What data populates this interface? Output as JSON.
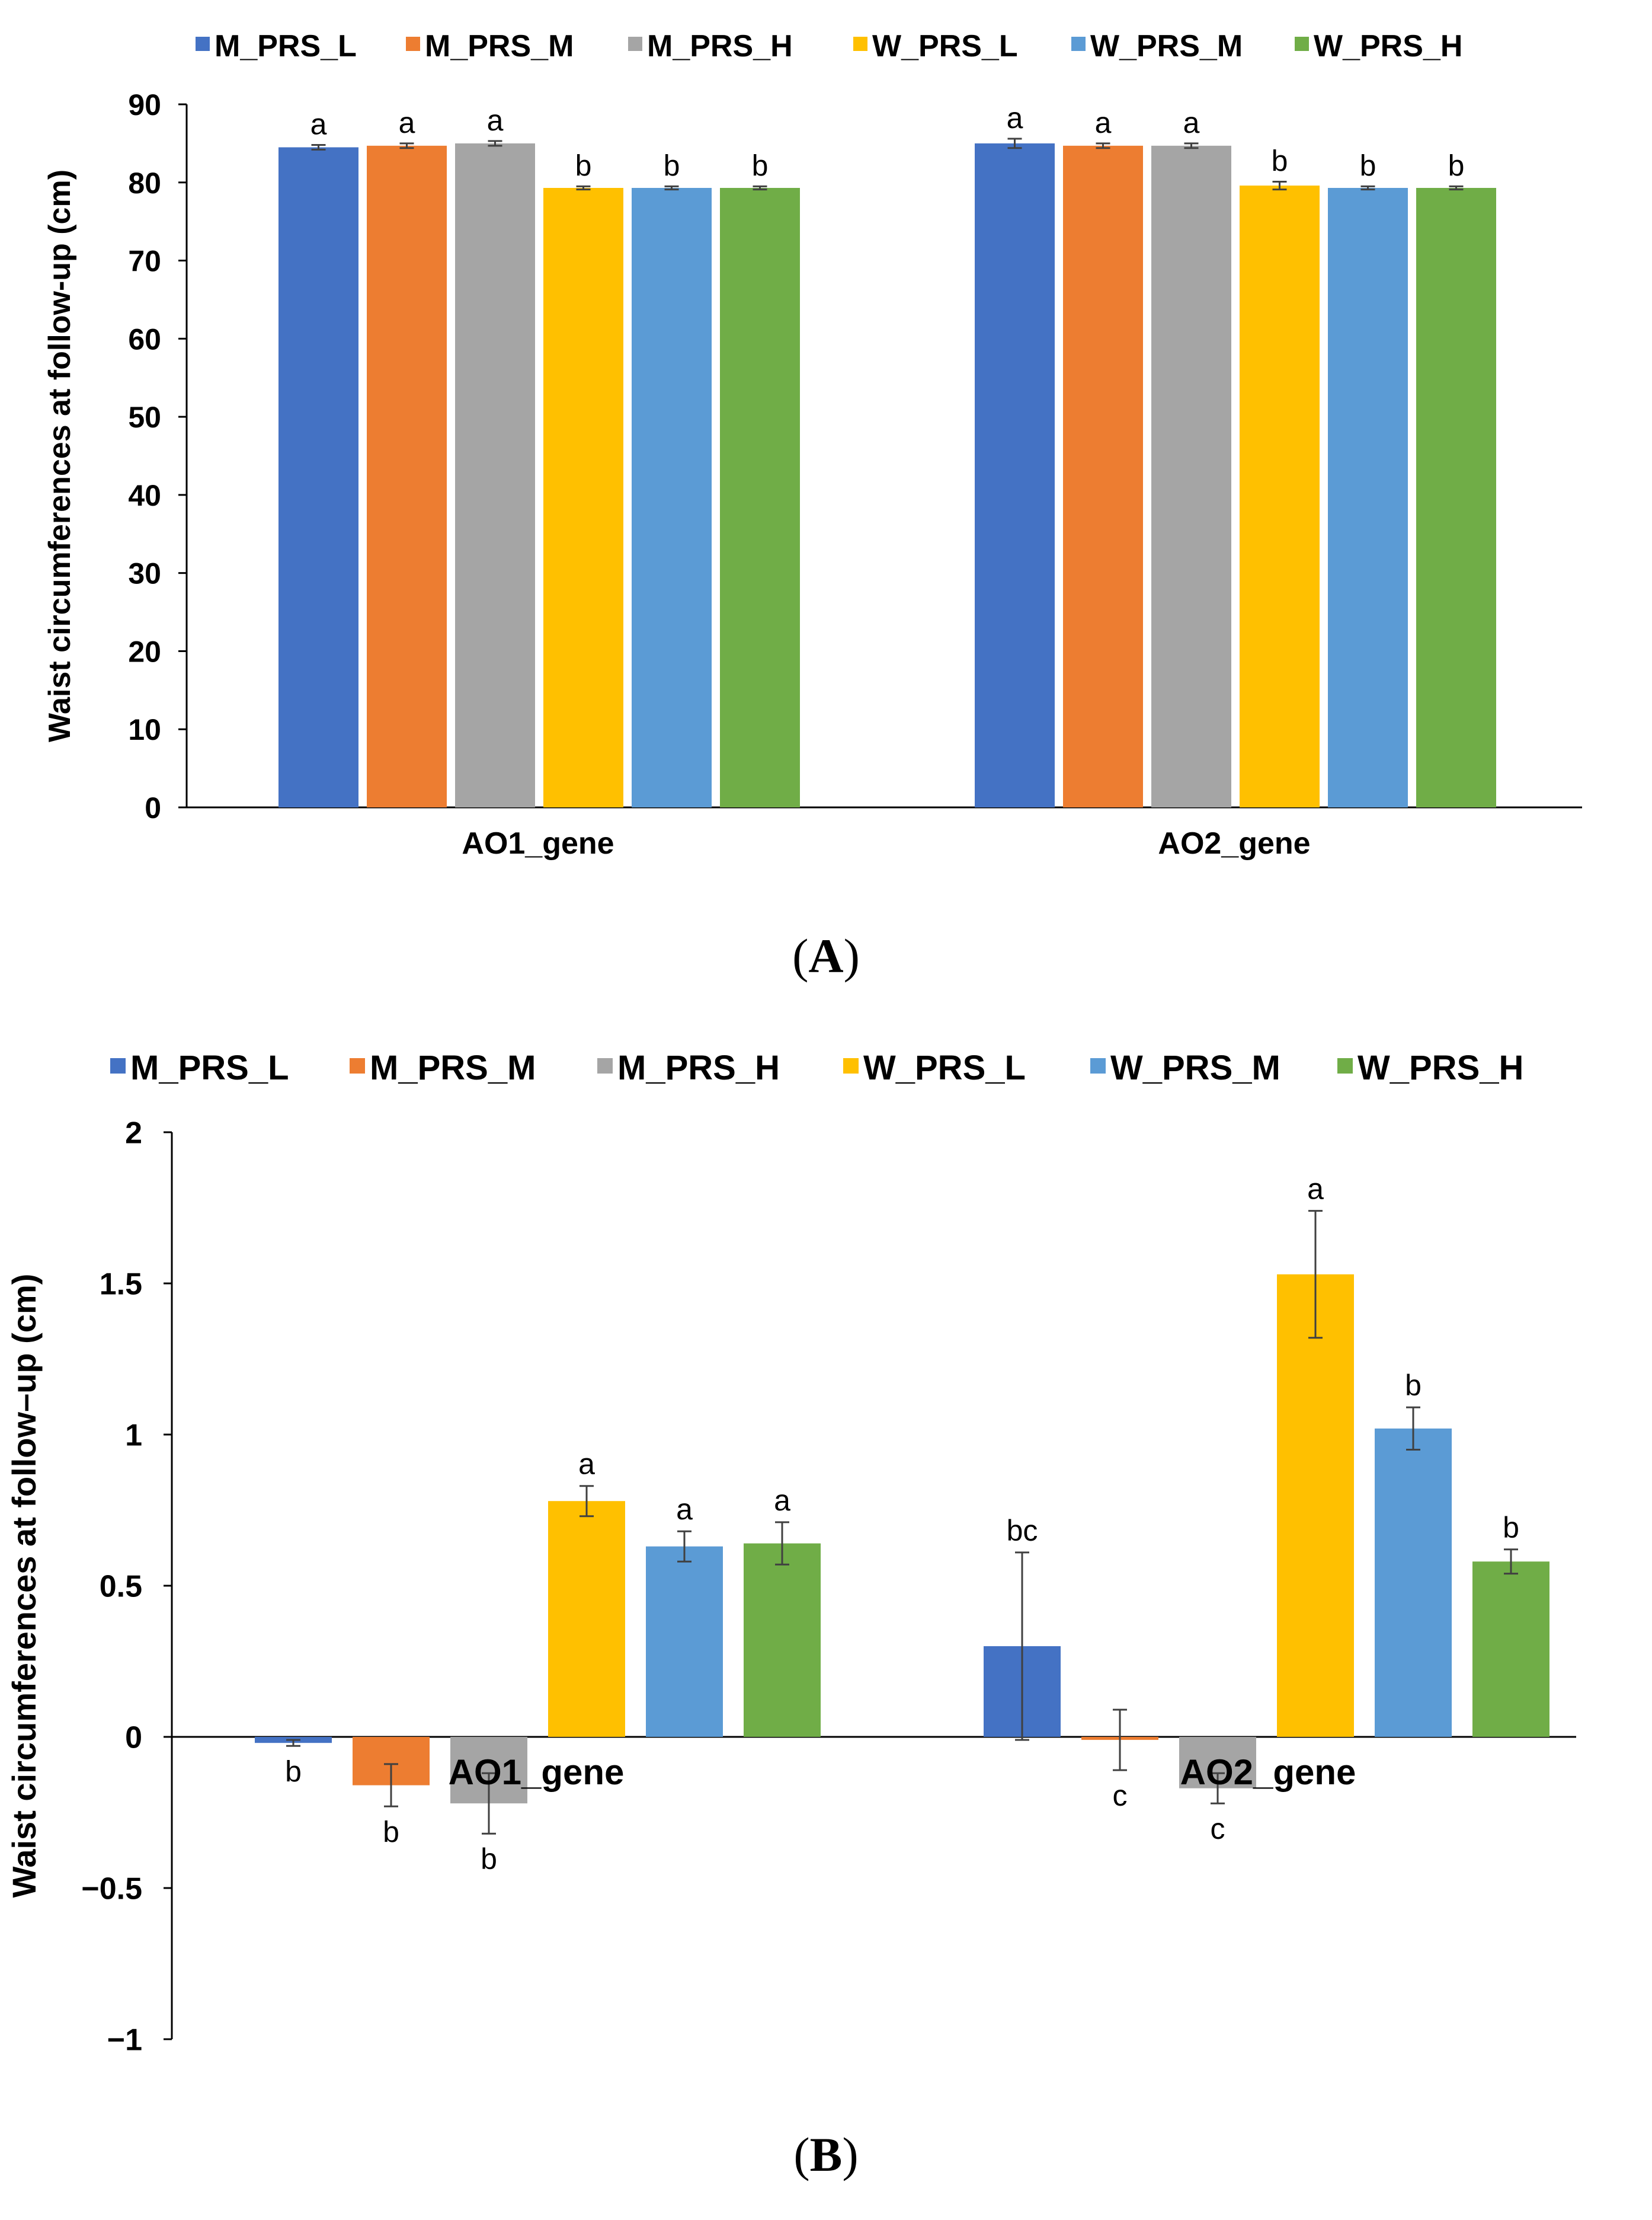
{
  "colors": {
    "M_PRS_L": "#4472C4",
    "M_PRS_M": "#ED7D31",
    "M_PRS_H": "#A5A5A5",
    "W_PRS_L": "#FFC000",
    "W_PRS_M": "#5B9BD5",
    "W_PRS_H": "#70AD47",
    "axis": "#000000",
    "text": "#000000",
    "error": "#404040"
  },
  "chart_data": [
    {
      "type": "bar",
      "panel_label": "A",
      "title": "",
      "xlabel": "",
      "ylabel": "Waist circumferences at follow-up (cm)",
      "ylim": [
        0,
        90
      ],
      "yticks": [
        0,
        10,
        20,
        30,
        40,
        50,
        60,
        70,
        80,
        90
      ],
      "grid": false,
      "legend_position": "top",
      "legend": [
        "M_PRS_L",
        "M_PRS_M",
        "M_PRS_H",
        "W_PRS_L",
        "W_PRS_M",
        "W_PRS_H"
      ],
      "categories": [
        "AO1_gene",
        "AO2_gene"
      ],
      "series": [
        {
          "name": "M_PRS_L",
          "values": [
            84.5,
            85.0
          ],
          "errors": [
            0.3,
            0.6
          ],
          "letters": [
            "a",
            "a"
          ]
        },
        {
          "name": "M_PRS_M",
          "values": [
            84.7,
            84.7
          ],
          "errors": [
            0.3,
            0.3
          ],
          "letters": [
            "a",
            "a"
          ]
        },
        {
          "name": "M_PRS_H",
          "values": [
            85.0,
            84.7
          ],
          "errors": [
            0.3,
            0.3
          ],
          "letters": [
            "a",
            "a"
          ]
        },
        {
          "name": "W_PRS_L",
          "values": [
            79.3,
            79.6
          ],
          "errors": [
            0.2,
            0.5
          ],
          "letters": [
            "b",
            "b"
          ]
        },
        {
          "name": "W_PRS_M",
          "values": [
            79.3,
            79.3
          ],
          "errors": [
            0.2,
            0.2
          ],
          "letters": [
            "b",
            "b"
          ]
        },
        {
          "name": "W_PRS_H",
          "values": [
            79.3,
            79.3
          ],
          "errors": [
            0.2,
            0.2
          ],
          "letters": [
            "b",
            "b"
          ]
        }
      ]
    },
    {
      "type": "bar",
      "panel_label": "B",
      "title": "",
      "xlabel": "",
      "ylabel": "Waist circumferences at follow–up (cm)",
      "ylim": [
        -1,
        2
      ],
      "yticks": [
        -1,
        -0.5,
        0,
        0.5,
        1,
        1.5,
        2
      ],
      "ytick_labels": [
        "−1",
        "−0.5",
        "0",
        "0.5",
        "1",
        "1.5",
        "2"
      ],
      "grid": false,
      "legend_position": "top",
      "legend": [
        "M_PRS_L",
        "M_PRS_M",
        "M_PRS_H",
        "W_PRS_L",
        "W_PRS_M",
        "W_PRS_H"
      ],
      "categories": [
        "AO1_gene",
        "AO2_gene"
      ],
      "series": [
        {
          "name": "M_PRS_L",
          "values": [
            -0.02,
            0.3
          ],
          "errors": [
            0.01,
            0.31
          ],
          "letters": [
            "b",
            "bc"
          ]
        },
        {
          "name": "M_PRS_M",
          "values": [
            -0.16,
            -0.01
          ],
          "errors": [
            0.07,
            0.1
          ],
          "letters": [
            "b",
            "c"
          ]
        },
        {
          "name": "M_PRS_H",
          "values": [
            -0.22,
            -0.17
          ],
          "errors": [
            0.1,
            0.05
          ],
          "letters": [
            "b",
            "c"
          ]
        },
        {
          "name": "W_PRS_L",
          "values": [
            0.78,
            1.53
          ],
          "errors": [
            0.05,
            0.21
          ],
          "letters": [
            "a",
            "a"
          ]
        },
        {
          "name": "W_PRS_M",
          "values": [
            0.63,
            1.02
          ],
          "errors": [
            0.05,
            0.07
          ],
          "letters": [
            "a",
            "b"
          ]
        },
        {
          "name": "W_PRS_H",
          "values": [
            0.64,
            0.58
          ],
          "errors": [
            0.07,
            0.04
          ],
          "letters": [
            "a",
            "b"
          ]
        }
      ]
    }
  ]
}
